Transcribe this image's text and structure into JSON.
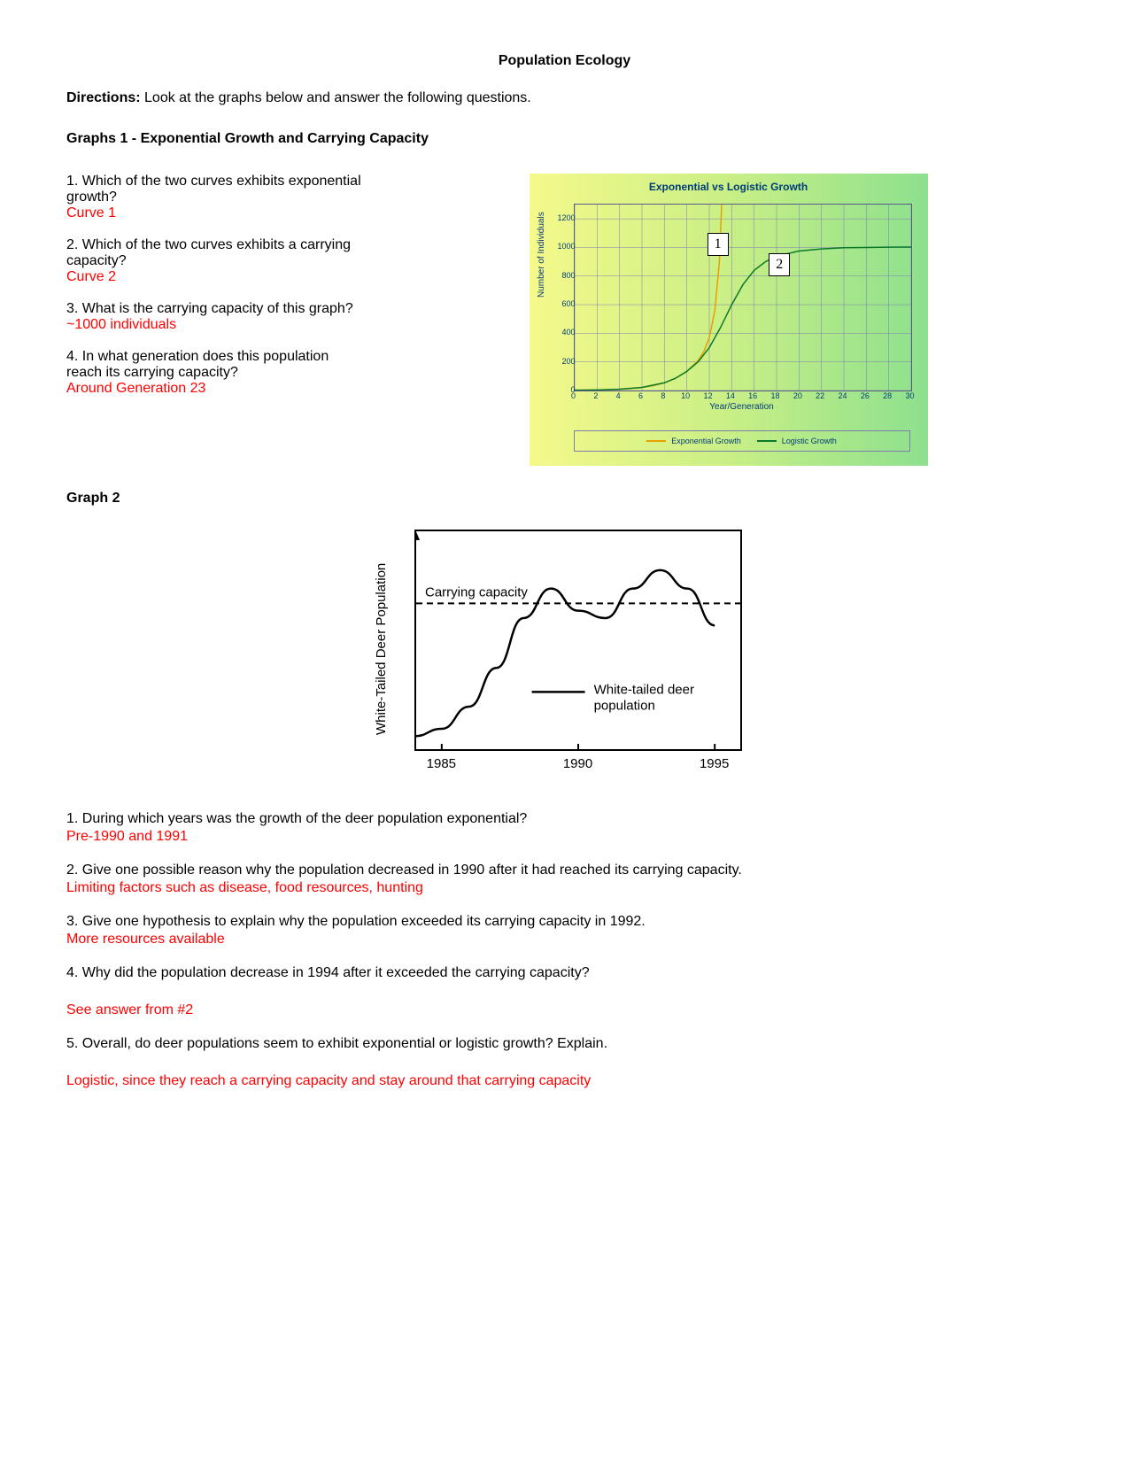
{
  "title": "Population Ecology",
  "directions_label": "Directions:",
  "directions_text": " Look at the graphs below and answer the following questions.",
  "section1_heading": "Graphs 1 - Exponential Growth and Carrying Capacity",
  "qa1": [
    {
      "q": "1. Which of the two curves exhibits exponential growth?",
      "a": "Curve 1"
    },
    {
      "q": "2. Which of the two curves exhibits a carrying capacity?",
      "a": "Curve 2"
    },
    {
      "q_pre": "3. What is the carrying capacity of this graph? ",
      "a_inline": "~1000 individuals"
    },
    {
      "q": "4. In what generation does this population reach its carrying capacity?",
      "a": "Around Generation 23"
    }
  ],
  "chart1": {
    "type": "line",
    "title": "Exponential vs Logistic Growth",
    "ylabel": "Number of Individuals",
    "xlabel": "Year/Generation",
    "xlim": [
      0,
      30
    ],
    "ylim": [
      0,
      1300
    ],
    "xtick_step": 2,
    "ytick_step": 200,
    "xticks": [
      0,
      2,
      4,
      6,
      8,
      10,
      12,
      14,
      16,
      18,
      20,
      22,
      24,
      26,
      28,
      30
    ],
    "yticks": [
      0,
      200,
      400,
      600,
      800,
      1000,
      1200
    ],
    "grid_color": "#7d7db0",
    "bg_gradient": [
      "#f5f98a",
      "#c9ef86",
      "#8de08e"
    ],
    "axis_color": "#5a5a8a",
    "text_color": "#003c7a",
    "title_fontsize": 12,
    "label_fontsize": 10,
    "tick_fontsize": 9,
    "legend_fontsize": 9,
    "line_width": 1.5,
    "series": [
      {
        "name": "Exponential Growth",
        "color": "#e8a000",
        "points": [
          [
            0,
            2
          ],
          [
            1,
            3
          ],
          [
            2,
            4
          ],
          [
            3,
            6
          ],
          [
            4,
            9
          ],
          [
            5,
            14
          ],
          [
            6,
            22
          ],
          [
            7,
            34
          ],
          [
            8,
            54
          ],
          [
            9,
            86
          ],
          [
            10,
            134
          ],
          [
            11,
            210
          ],
          [
            11.5,
            270
          ],
          [
            12,
            370
          ],
          [
            12.5,
            560
          ],
          [
            12.9,
            900
          ],
          [
            13.1,
            1300
          ]
        ]
      },
      {
        "name": "Logistic Growth",
        "color": "#0a7a2a",
        "points": [
          [
            0,
            2
          ],
          [
            2,
            4
          ],
          [
            4,
            9
          ],
          [
            6,
            22
          ],
          [
            8,
            54
          ],
          [
            9,
            86
          ],
          [
            10,
            134
          ],
          [
            11,
            200
          ],
          [
            12,
            300
          ],
          [
            13,
            440
          ],
          [
            14,
            600
          ],
          [
            15,
            740
          ],
          [
            16,
            840
          ],
          [
            17,
            900
          ],
          [
            18,
            940
          ],
          [
            20,
            975
          ],
          [
            22,
            990
          ],
          [
            24,
            998
          ],
          [
            26,
            1000
          ],
          [
            28,
            1002
          ],
          [
            30,
            1003
          ]
        ]
      }
    ],
    "curve_labels": [
      {
        "text": "1",
        "x": 12.8,
        "y": 1020
      },
      {
        "text": "2",
        "x": 18.3,
        "y": 880
      }
    ]
  },
  "section2_heading": "Graph 2",
  "chart2": {
    "type": "line",
    "ylabel": "White-Tailed Deer Population",
    "xlabel_ticks": [
      "1985",
      "1990",
      "1995"
    ],
    "xlim": [
      1984,
      1996
    ],
    "ylim": [
      0,
      120
    ],
    "axis_color": "#000000",
    "line_color": "#000000",
    "line_width": 2.5,
    "carrying_capacity_y": 80,
    "carrying_capacity_label": "Carrying capacity",
    "carrying_dash": "7 5",
    "legend_line_label": "White-tailed deer population",
    "fontsize": 15,
    "series_points": [
      [
        1984,
        8
      ],
      [
        1985,
        12
      ],
      [
        1986,
        24
      ],
      [
        1987,
        45
      ],
      [
        1988,
        72
      ],
      [
        1989,
        88
      ],
      [
        1990,
        76
      ],
      [
        1991,
        72
      ],
      [
        1992,
        88
      ],
      [
        1993,
        98
      ],
      [
        1994,
        88
      ],
      [
        1995,
        68
      ]
    ]
  },
  "qa2": [
    {
      "q": "1. During which years was the growth of the deer population exponential?",
      "a": "Pre-1990 and 1991"
    },
    {
      "q": "2. Give one possible reason why the population decreased in 1990 after it had reached its carrying capacity.",
      "a": "Limiting factors such as disease, food resources, hunting"
    },
    {
      "q": "3. Give one hypothesis to explain why the population exceeded its carrying capacity in 1992.",
      "a": "More resources available"
    },
    {
      "q": "4. Why did the population decrease in 1994 after it exceeded the carrying capacity?",
      "a": "See answer from #2"
    },
    {
      "q": "5. Overall, do deer populations seem to exhibit exponential or logistic growth? Explain.",
      "a": "Logistic, since they reach a carrying capacity and stay around that carrying capacity"
    }
  ]
}
